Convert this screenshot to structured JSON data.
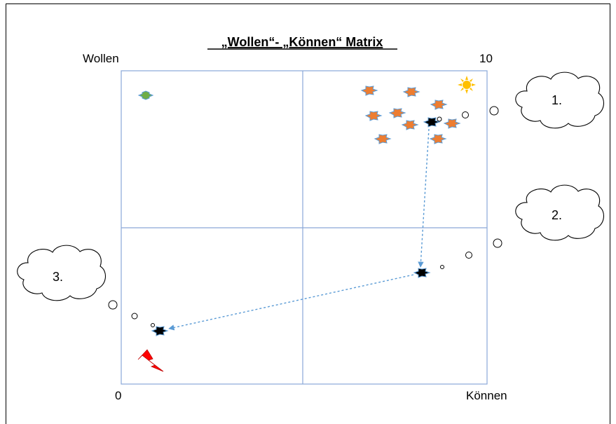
{
  "title": "„Wollen“- „Können“ Matrix",
  "y_axis_label": "Wollen",
  "x_axis_label": "Können",
  "origin_label": "0",
  "max_label": "10",
  "thought_bubbles": [
    "1.",
    "2.",
    "3."
  ],
  "colors": {
    "grid_line": "#8aa8d8",
    "orange_star": "#ed7d31",
    "star_outline": "#5b9bd5",
    "green_star": "#70ad47",
    "sun": "#ffc000",
    "lightning": "#ff0000",
    "black_star": "#000000",
    "arrow": "#5b9bd5"
  },
  "icons": [
    "sun-icon",
    "star-icon",
    "lightning-icon",
    "thought-cloud-icon",
    "arrow-icon"
  ]
}
